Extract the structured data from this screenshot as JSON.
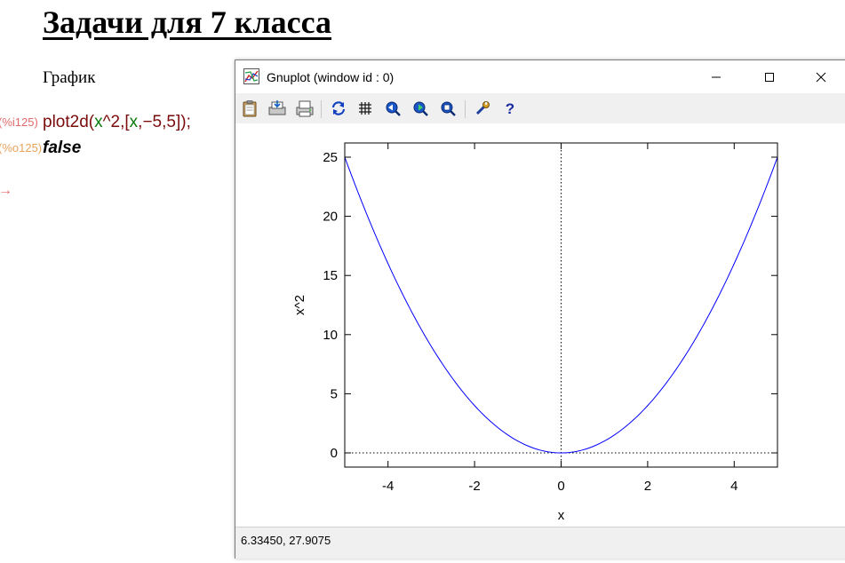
{
  "document": {
    "title": "Задачи для 7 класса",
    "section_text": "График",
    "input_label": "(%i125)",
    "output_label": "(%o125)",
    "input_code": {
      "fn": "plot2d",
      "open": "(",
      "expr_var": "x",
      "expr_rest": "^2",
      "comma1": ",",
      "bracket_open": "[",
      "range_var": "x",
      "comma2": ",",
      "range_lo": "−5",
      "comma3": ",",
      "range_hi": "5",
      "bracket_close": "]",
      "close": ");"
    },
    "output_value": "false",
    "cursor_glyph": "→"
  },
  "gnuplot_window": {
    "title": "Gnuplot (window id : 0)",
    "toolbar_icons": [
      "copy-clipboard-icon",
      "print-icon",
      "printer-icon",
      "replot-icon",
      "grid-icon",
      "zoom-previous-icon",
      "zoom-next-icon",
      "autoscale-icon",
      "options-icon",
      "help-icon"
    ],
    "status_text": "6.33450,  27.9075"
  },
  "chart_data": {
    "type": "line",
    "title": "",
    "xlabel": "x",
    "ylabel": "x^2",
    "xlim": [
      -5,
      5
    ],
    "ylim": [
      -1.2,
      26.2
    ],
    "x_ticks": [
      -4,
      -2,
      0,
      2,
      4
    ],
    "x_tick_labels": [
      "-4",
      "-2",
      "0",
      "2",
      "4"
    ],
    "y_ticks": [
      0,
      5,
      10,
      15,
      20,
      25
    ],
    "y_tick_labels": [
      "0",
      "5",
      "10",
      "15",
      "20",
      "25"
    ],
    "series": [
      {
        "color": "#0000ff",
        "x": [
          -5,
          -4.5,
          -4,
          -3.5,
          -3,
          -2.5,
          -2,
          -1.5,
          -1,
          -0.5,
          0,
          0.5,
          1,
          1.5,
          2,
          2.5,
          3,
          3.5,
          4,
          4.5,
          5
        ],
        "y": [
          25,
          20.25,
          16,
          12.25,
          9,
          6.25,
          4,
          2.25,
          1,
          0.25,
          0,
          0.25,
          1,
          2.25,
          4,
          6.25,
          9,
          12.25,
          16,
          20.25,
          25
        ]
      }
    ],
    "zero_axes": "dotted",
    "grid": false,
    "legend": "none"
  }
}
